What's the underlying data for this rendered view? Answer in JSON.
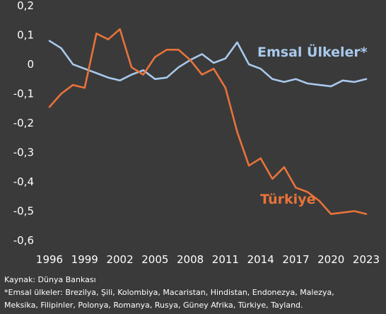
{
  "chart_data": {
    "type": "line",
    "title": "",
    "xlabel": "",
    "ylabel": "",
    "ylim": [
      -0.6,
      0.2
    ],
    "yticks": [
      0.2,
      0.1,
      0,
      -0.1,
      -0.2,
      -0.3,
      -0.4,
      -0.5,
      -0.6
    ],
    "ytick_labels": [
      "0,2",
      "0,1",
      "0",
      "-0,1",
      "-0,2",
      "-0,3",
      "-0,4",
      "-0,5",
      "-0,6"
    ],
    "xlim": [
      1996,
      2023
    ],
    "xticks": [
      1996,
      1999,
      2002,
      2005,
      2008,
      2011,
      2014,
      2017,
      2020,
      2023
    ],
    "xtick_labels": [
      "1996",
      "1999",
      "2002",
      "2005",
      "2008",
      "2011",
      "2014",
      "2017",
      "2020",
      "2023"
    ],
    "grid": false,
    "x": [
      1996,
      1997,
      1998,
      1999,
      2000,
      2001,
      2002,
      2003,
      2004,
      2005,
      2006,
      2007,
      2008,
      2009,
      2010,
      2011,
      2012,
      2013,
      2014,
      2015,
      2016,
      2017,
      2018,
      2019,
      2020,
      2021,
      2022,
      2023
    ],
    "series": [
      {
        "name": "Emsal Ülkeler*",
        "color": "#a9c9ec",
        "values": [
          0.08,
          0.055,
          0.0,
          -0.015,
          -0.03,
          -0.045,
          -0.055,
          -0.035,
          -0.02,
          -0.05,
          -0.045,
          -0.01,
          0.015,
          0.035,
          0.005,
          0.02,
          0.075,
          0.0,
          -0.015,
          -0.05,
          -0.06,
          -0.05,
          -0.065,
          -0.07,
          -0.075,
          -0.055,
          -0.06,
          -0.05
        ]
      },
      {
        "name": "Türkiye",
        "color": "#e8733a",
        "values": [
          -0.145,
          -0.1,
          -0.07,
          -0.08,
          0.105,
          0.085,
          0.12,
          -0.01,
          -0.035,
          0.025,
          0.05,
          0.05,
          0.015,
          -0.035,
          -0.015,
          -0.08,
          -0.23,
          -0.345,
          -0.32,
          -0.39,
          -0.35,
          -0.42,
          -0.435,
          -0.465,
          -0.51,
          -0.505,
          -0.5,
          -0.51
        ]
      }
    ],
    "annotations": [
      "Emsal Ülkeler*",
      "Türkiye"
    ]
  },
  "notes": {
    "source": "Kaynak: Dünya Bankası",
    "footnote_line1": "*Emsal ülkeler: Brezilya, Şili, Kolombiya, Macaristan, Hindistan, Endonezya, Malezya,",
    "footnote_line2": "Meksika, Filipinler, Polonya, Romanya, Rusya, Güney Afrika, Türkiye, Tayland."
  }
}
